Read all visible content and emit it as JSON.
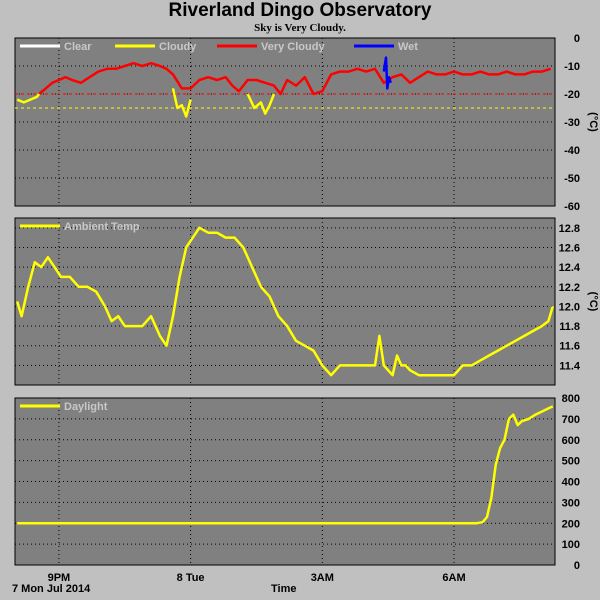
{
  "title": "Riverland Dingo Observatory",
  "subtitle": "Sky is Very Cloudy.",
  "x_axis": {
    "label": "Time",
    "date_label": "7 Mon Jul 2014",
    "ticks": [
      "9PM",
      "8 Tue",
      "3AM",
      "6AM"
    ],
    "tick_hours": [
      21,
      24,
      27,
      30
    ],
    "range_hours": [
      20.0,
      32.3
    ]
  },
  "chart_data": [
    {
      "type": "line",
      "panel": "sky",
      "ylabel": "(°C)",
      "ylim": [
        -60,
        0
      ],
      "yticks": [
        0,
        -10,
        -20,
        -30,
        -40,
        -50,
        -60
      ],
      "thresholds": [
        {
          "value": -20,
          "color": "#ff0000"
        },
        {
          "value": -25,
          "color": "#ffff00"
        }
      ],
      "legend": [
        {
          "name": "Clear",
          "color": "#ffffff"
        },
        {
          "name": "Cloudy",
          "color": "#ffff00"
        },
        {
          "name": "Very Cloudy",
          "color": "#ff0000"
        },
        {
          "name": "Wet",
          "color": "#0000ff"
        }
      ],
      "series": [
        {
          "name": "Very Cloudy",
          "color": "#ff0000",
          "x": [
            20.55,
            20.7,
            20.85,
            21.0,
            21.15,
            21.3,
            21.5,
            21.7,
            21.9,
            22.1,
            22.3,
            22.5,
            22.7,
            22.9,
            23.1,
            23.3,
            23.45,
            23.6,
            23.8,
            24.0,
            24.2,
            24.4,
            24.6,
            24.8,
            24.95,
            25.1,
            25.3,
            25.5,
            25.7,
            25.9,
            26.05,
            26.2,
            26.4,
            26.6,
            26.8,
            27.0,
            27.2,
            27.4,
            27.6,
            27.8,
            28.0,
            28.2,
            28.4,
            28.6,
            28.8,
            29.0,
            29.2,
            29.4,
            29.6,
            29.8,
            30.0,
            30.2,
            30.4,
            30.6,
            30.8,
            31.0,
            31.2,
            31.4,
            31.6,
            31.8,
            32.0,
            32.2
          ],
          "y": [
            -20,
            -18,
            -16,
            -15,
            -14,
            -15,
            -16,
            -14,
            -12,
            -11,
            -11,
            -10,
            -9,
            -10,
            -9,
            -10,
            -11,
            -13,
            -18,
            -18,
            -15,
            -14,
            -15,
            -14,
            -17,
            -19,
            -15,
            -15,
            -16,
            -17,
            -20,
            -15,
            -17,
            -14,
            -20,
            -19,
            -13,
            -12,
            -12,
            -11,
            -12,
            -11,
            -16,
            -14,
            -13,
            -16,
            -14,
            -12,
            -13,
            -13,
            -12,
            -13,
            -13,
            -12,
            -13,
            -13,
            -12,
            -13,
            -13,
            -12,
            -12,
            -11
          ]
        },
        {
          "name": "Cloudy",
          "color": "#ffff00",
          "x": [
            20.05,
            20.2,
            20.35,
            20.5,
            20.55
          ],
          "y": [
            -22,
            -23,
            -22,
            -21,
            -20
          ]
        },
        {
          "name": "Cloudy",
          "color": "#ffff00",
          "x": [
            23.6,
            23.7,
            23.8,
            23.9,
            24.0
          ],
          "y": [
            -18,
            -25,
            -24,
            -28,
            -22
          ]
        },
        {
          "name": "Cloudy",
          "color": "#ffff00",
          "x": [
            25.3,
            25.45,
            25.6,
            25.7,
            25.8,
            25.9
          ],
          "y": [
            -20,
            -25,
            -23,
            -27,
            -24,
            -20
          ]
        },
        {
          "name": "Wet",
          "color": "#0000ff",
          "x": [
            28.4,
            28.45,
            28.48,
            28.52,
            28.56
          ],
          "y": [
            -12,
            -7,
            -18,
            -14,
            -16
          ]
        }
      ]
    },
    {
      "type": "line",
      "panel": "ambient",
      "ylabel": "(°C)",
      "ylim": [
        11.2,
        12.9
      ],
      "yticks": [
        12.8,
        12.6,
        12.4,
        12.2,
        12.0,
        11.8,
        11.6,
        11.4
      ],
      "legend": [
        {
          "name": "Ambient Temp",
          "color": "#ffff00"
        }
      ],
      "series": [
        {
          "name": "Ambient Temp",
          "color": "#ffff00",
          "x": [
            20.05,
            20.15,
            20.3,
            20.45,
            20.6,
            20.75,
            20.9,
            21.05,
            21.25,
            21.45,
            21.65,
            21.85,
            22.05,
            22.2,
            22.35,
            22.5,
            22.7,
            22.9,
            23.1,
            23.3,
            23.45,
            23.6,
            23.75,
            23.9,
            24.05,
            24.2,
            24.4,
            24.6,
            24.8,
            25.0,
            25.2,
            25.4,
            25.6,
            25.8,
            26.0,
            26.2,
            26.4,
            26.6,
            26.8,
            27.0,
            27.2,
            27.4,
            27.6,
            27.8,
            28.0,
            28.2,
            28.3,
            28.4,
            28.5,
            28.6,
            28.7,
            28.8,
            28.9,
            29.0,
            29.2,
            29.4,
            29.6,
            29.8,
            30.0,
            30.2,
            30.4,
            30.6,
            30.8,
            31.0,
            31.2,
            31.4,
            31.6,
            31.8,
            32.0,
            32.15,
            32.25
          ],
          "y": [
            12.05,
            11.9,
            12.2,
            12.45,
            12.4,
            12.5,
            12.4,
            12.3,
            12.3,
            12.2,
            12.2,
            12.15,
            12.0,
            11.85,
            11.9,
            11.8,
            11.8,
            11.8,
            11.9,
            11.7,
            11.6,
            11.9,
            12.3,
            12.6,
            12.7,
            12.8,
            12.75,
            12.75,
            12.7,
            12.7,
            12.6,
            12.4,
            12.2,
            12.1,
            11.9,
            11.8,
            11.65,
            11.6,
            11.55,
            11.4,
            11.3,
            11.4,
            11.4,
            11.4,
            11.4,
            11.4,
            11.7,
            11.4,
            11.35,
            11.3,
            11.5,
            11.4,
            11.4,
            11.35,
            11.3,
            11.3,
            11.3,
            11.3,
            11.3,
            11.4,
            11.4,
            11.45,
            11.5,
            11.55,
            11.6,
            11.65,
            11.7,
            11.75,
            11.8,
            11.85,
            12.0
          ]
        }
      ]
    },
    {
      "type": "line",
      "panel": "daylight",
      "ylabel": "",
      "ylim": [
        0,
        800
      ],
      "yticks": [
        800,
        700,
        600,
        500,
        400,
        300,
        200,
        100,
        0
      ],
      "legend": [
        {
          "name": "Daylight",
          "color": "#ffff00"
        }
      ],
      "series": [
        {
          "name": "Daylight",
          "color": "#ffff00",
          "x": [
            20.05,
            21.0,
            22.0,
            23.0,
            24.0,
            25.0,
            26.0,
            27.0,
            28.0,
            29.0,
            30.0,
            30.5,
            30.65,
            30.75,
            30.85,
            30.95,
            31.05,
            31.15,
            31.25,
            31.35,
            31.45,
            31.55,
            31.7,
            31.85,
            32.0,
            32.15,
            32.25
          ],
          "y": [
            200,
            200,
            200,
            200,
            200,
            200,
            200,
            200,
            200,
            200,
            200,
            200,
            205,
            230,
            320,
            480,
            560,
            600,
            700,
            720,
            670,
            690,
            700,
            720,
            735,
            750,
            760
          ]
        }
      ]
    }
  ]
}
